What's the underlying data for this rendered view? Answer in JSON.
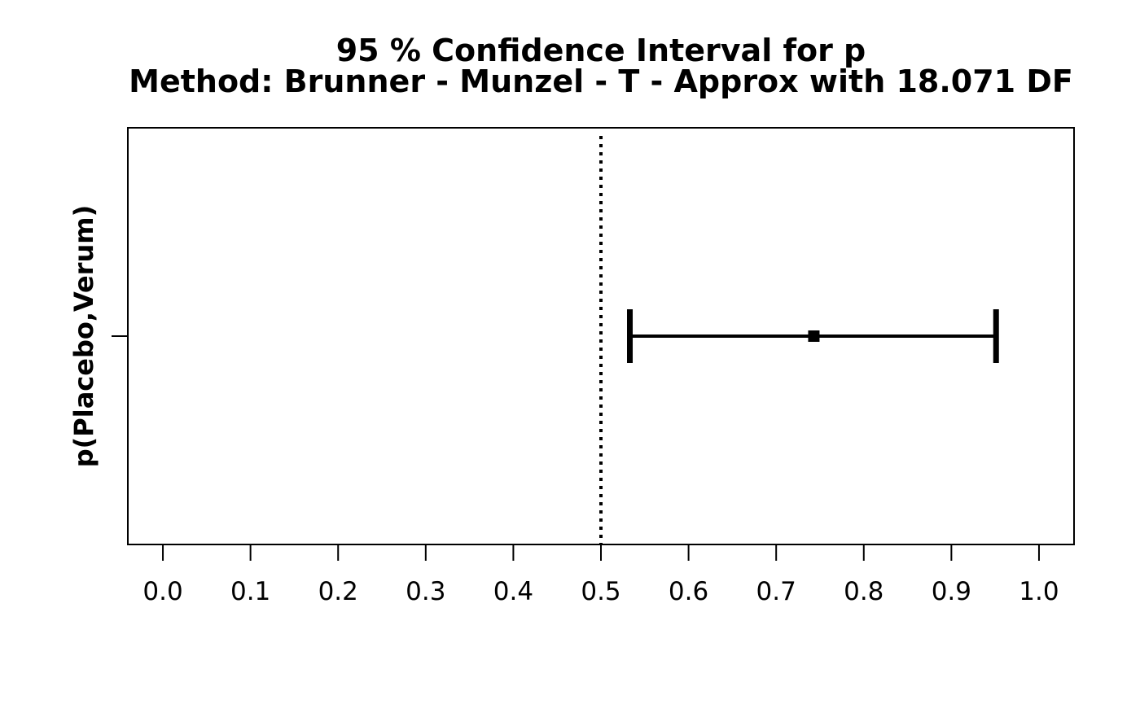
{
  "chart_data": {
    "type": "errorbar",
    "title": "95 % Confidence Interval for p",
    "subtitle": "Method: Brunner - Munzel - T - Approx with 18.071 DF",
    "xlabel": "",
    "ylabel": "p(Placebo,Verum)",
    "xlim": [
      -0.04,
      1.04
    ],
    "x_ticks": [
      0.0,
      0.1,
      0.2,
      0.3,
      0.4,
      0.5,
      0.6,
      0.7,
      0.8,
      0.9,
      1.0
    ],
    "x_tick_labels": [
      "0.0",
      "0.1",
      "0.2",
      "0.3",
      "0.4",
      "0.5",
      "0.6",
      "0.7",
      "0.8",
      "0.9",
      "1.0"
    ],
    "reference_line": {
      "x": 0.5,
      "style": "dotted"
    },
    "series": [
      {
        "estimate": 0.743,
        "lower": 0.533,
        "upper": 0.951
      }
    ],
    "grid": false,
    "colors": {
      "line": "#000000",
      "background": "#ffffff"
    }
  }
}
